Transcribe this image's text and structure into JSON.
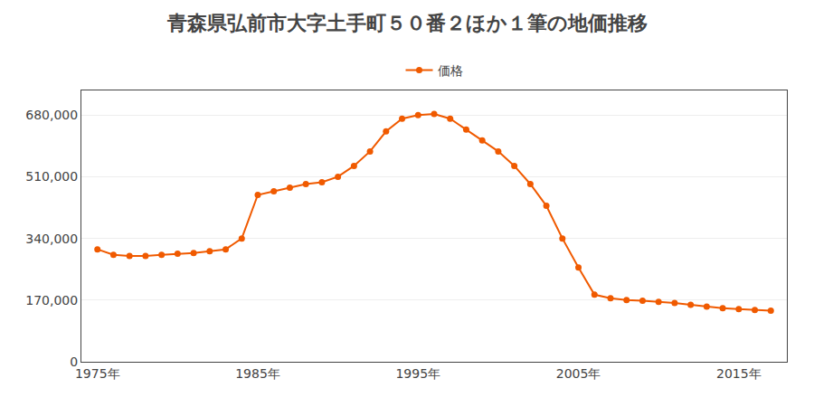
{
  "chart_data": {
    "type": "line",
    "title": "青森県弘前市大字土手町５０番２ほか１筆の地価推移",
    "x": [
      1975,
      1976,
      1977,
      1978,
      1979,
      1980,
      1981,
      1982,
      1983,
      1984,
      1985,
      1986,
      1987,
      1988,
      1989,
      1990,
      1991,
      1992,
      1993,
      1994,
      1995,
      1996,
      1997,
      1998,
      1999,
      2000,
      2001,
      2002,
      2003,
      2004,
      2005,
      2006,
      2007,
      2008,
      2009,
      2010,
      2011,
      2012,
      2013,
      2014,
      2015,
      2016,
      2017
    ],
    "series": [
      {
        "name": "価格",
        "color": "#f05a00",
        "marker": "circle",
        "values": [
          310000,
          295000,
          292000,
          292000,
          295000,
          298000,
          300000,
          305000,
          310000,
          340000,
          460000,
          470000,
          480000,
          490000,
          495000,
          510000,
          540000,
          580000,
          635000,
          670000,
          680000,
          683000,
          670000,
          640000,
          610000,
          580000,
          540000,
          490000,
          430000,
          340000,
          260000,
          185000,
          175000,
          170000,
          168000,
          165000,
          162000,
          157000,
          152000,
          148000,
          145000,
          143000,
          141000
        ]
      }
    ],
    "xlim": [
      1974,
      2018
    ],
    "ylim": [
      0,
      748000
    ],
    "xticks": [
      {
        "value": 1975,
        "label": "1975年"
      },
      {
        "value": 1985,
        "label": "1985年"
      },
      {
        "value": 1995,
        "label": "1995年"
      },
      {
        "value": 2005,
        "label": "2005年"
      },
      {
        "value": 2015,
        "label": "2015年"
      }
    ],
    "yticks": [
      0,
      {
        "value": 170000,
        "label": "170,000"
      },
      {
        "value": 340000,
        "label": "340,000"
      },
      {
        "value": 510000,
        "label": "510,000"
      },
      {
        "value": 680000,
        "label": "680,000"
      }
    ],
    "grid": true,
    "legend": "top"
  }
}
